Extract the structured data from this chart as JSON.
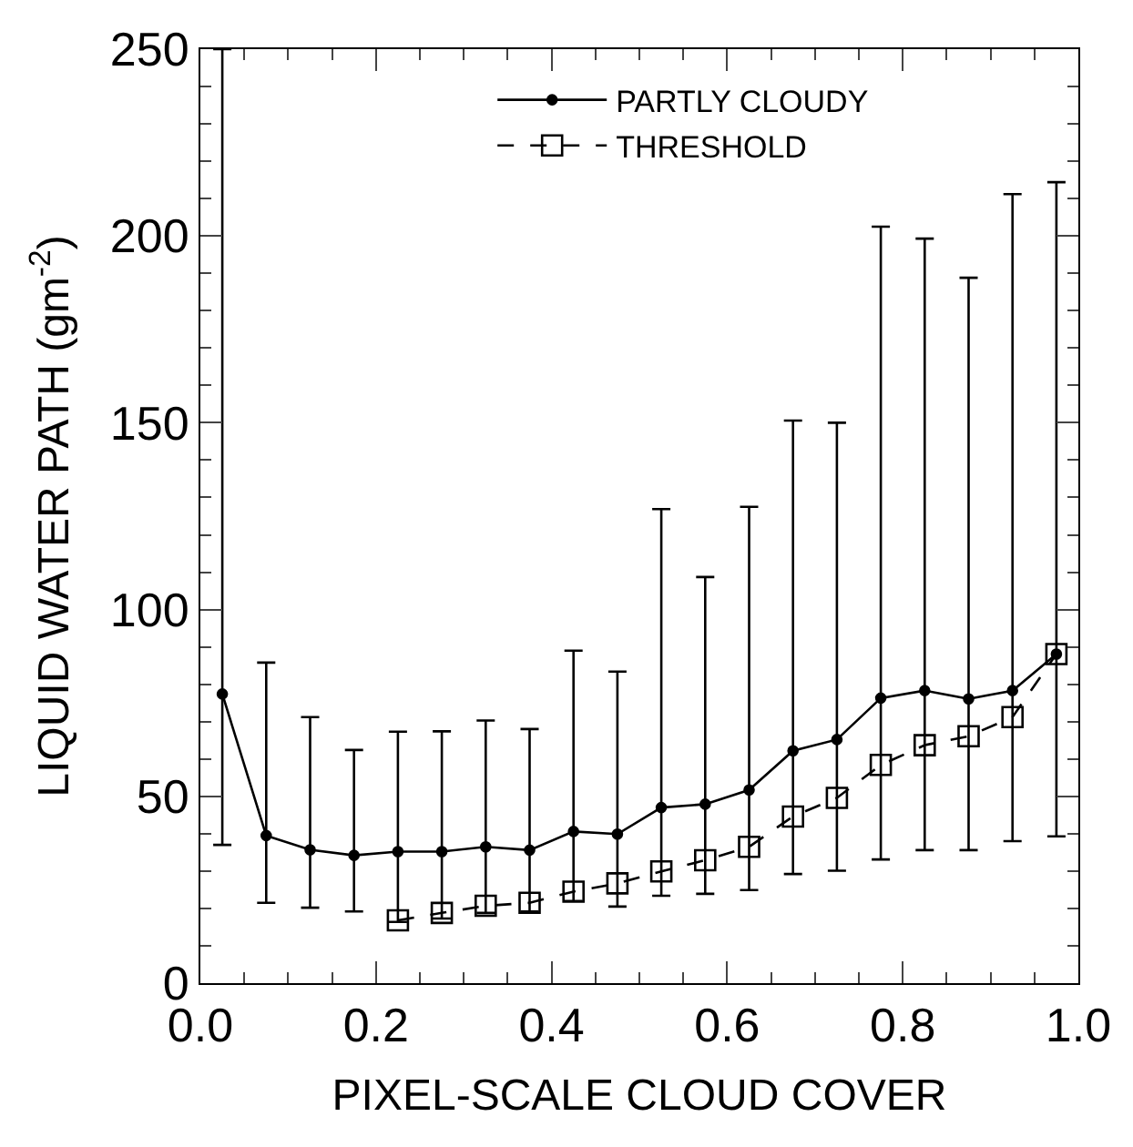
{
  "chart_data": {
    "type": "line",
    "xlabel": "PIXEL-SCALE CLOUD COVER",
    "ylabel": "LIQUID WATER PATH (gm$^{-2}$)",
    "x": [
      0.025,
      0.075,
      0.125,
      0.175,
      0.225,
      0.275,
      0.325,
      0.375,
      0.425,
      0.475,
      0.525,
      0.575,
      0.625,
      0.675,
      0.725,
      0.775,
      0.825,
      0.875,
      0.925,
      0.975
    ],
    "series": [
      {
        "name": "PARTLY CLOUDY",
        "color": "#000000",
        "marker": "circle",
        "line_style": "solid",
        "values": [
          77.4,
          39.5,
          35.7,
          34.2,
          35.2,
          35.2,
          36.5,
          35.6,
          40.6,
          39.9,
          47.0,
          47.9,
          51.7,
          62.2,
          65.2,
          76.3,
          78.3,
          76.1,
          78.3,
          88.1
        ],
        "errors": [
          [
            37.0,
            250
          ],
          [
            21.5,
            85.8
          ],
          [
            20.2,
            71.2
          ],
          [
            19.2,
            62.4
          ],
          [
            16.4,
            67.3
          ],
          [
            17.3,
            67.4
          ],
          [
            18.8,
            70.3
          ],
          [
            19.2,
            68.0
          ],
          [
            22.0,
            89.0
          ],
          [
            20.5,
            83.4
          ],
          [
            23.4,
            126.9
          ],
          [
            23.9,
            108.7
          ],
          [
            24.9,
            127.5
          ],
          [
            29.2,
            150.6
          ],
          [
            30.1,
            150.0
          ],
          [
            33.1,
            202.5
          ],
          [
            35.6,
            199.3
          ],
          [
            35.6,
            188.8
          ],
          [
            38.0,
            211.2
          ],
          [
            39.3,
            214.4
          ]
        ]
      },
      {
        "name": "THRESHOLD",
        "color": "#000000",
        "marker": "square",
        "line_style": "dashed",
        "values": [
          null,
          null,
          null,
          null,
          16.8,
          18.8,
          20.7,
          21.5,
          24.5,
          26.7,
          29.9,
          32.9,
          36.5,
          44.6,
          49.6,
          58.4,
          63.7,
          66.1,
          71.2,
          88.1
        ]
      }
    ],
    "xlim": [
      0,
      1
    ],
    "ylim": [
      0,
      250
    ],
    "xticks": [
      {
        "value": 0,
        "label": "0.0"
      },
      {
        "value": 0.2,
        "label": "0.2"
      },
      {
        "value": 0.4,
        "label": "0.4"
      },
      {
        "value": 0.6,
        "label": "0.6"
      },
      {
        "value": 0.8,
        "label": "0.8"
      },
      {
        "value": 1,
        "label": "1.0"
      }
    ],
    "yticks": [
      0,
      50,
      100,
      150,
      200,
      250
    ],
    "legend": "top"
  }
}
